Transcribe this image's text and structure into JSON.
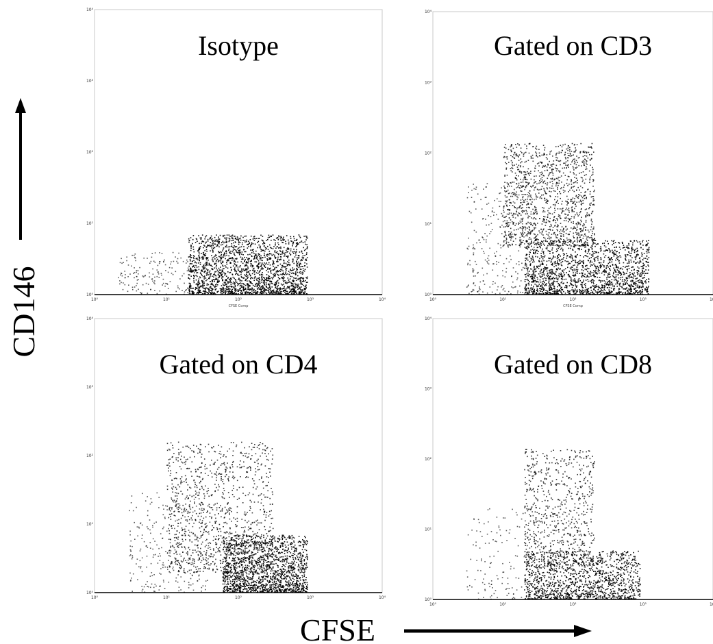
{
  "figure": {
    "y_axis_label": "CD146",
    "x_axis_label": "CFSE"
  },
  "chart_data": [
    {
      "type": "scatter",
      "title": "Isotype",
      "xlabel": "CFSE Comp",
      "scale": "log",
      "xlim": [
        1,
        10000
      ],
      "ylim": [
        1,
        10000
      ],
      "x_ticks": [
        "10⁰",
        "10¹",
        "10²",
        "10³",
        "10⁴"
      ],
      "y_ticks": [
        "10⁰",
        "10¹",
        "10²",
        "10³",
        "10⁴"
      ],
      "clusters": [
        {
          "x_range": [
            20,
            900
          ],
          "y_range": [
            1,
            7
          ],
          "density": "high",
          "points": 2200
        },
        {
          "x_range": [
            2,
            20
          ],
          "y_range": [
            1,
            4
          ],
          "density": "low",
          "points": 160
        }
      ]
    },
    {
      "type": "scatter",
      "title": "Gated on CD3",
      "xlabel": "CFSE Comp",
      "scale": "log",
      "xlim": [
        1,
        10000
      ],
      "ylim": [
        1,
        10000
      ],
      "x_ticks": [
        "10⁰",
        "10¹",
        "10²",
        "10³",
        "10⁴"
      ],
      "y_ticks": [
        "10⁰",
        "10¹",
        "10²",
        "10³",
        "10⁴"
      ],
      "clusters": [
        {
          "x_range": [
            20,
            1200
          ],
          "y_range": [
            1,
            6
          ],
          "density": "high",
          "points": 1800
        },
        {
          "x_range": [
            10,
            200
          ],
          "y_range": [
            5,
            140
          ],
          "density": "medium",
          "points": 1300
        },
        {
          "x_range": [
            3,
            30
          ],
          "y_range": [
            1,
            40
          ],
          "density": "low",
          "points": 320
        }
      ]
    },
    {
      "type": "scatter",
      "title": "Gated on CD4",
      "xlabel": "",
      "scale": "log",
      "xlim": [
        1,
        10000
      ],
      "ylim": [
        1,
        10000
      ],
      "x_ticks": [
        "10⁰",
        "10¹",
        "10²",
        "10³",
        "10⁴"
      ],
      "y_ticks": [
        "10⁰",
        "10¹",
        "10²",
        "10³",
        "10⁴"
      ],
      "clusters": [
        {
          "x_range": [
            60,
            900
          ],
          "y_range": [
            1,
            7
          ],
          "density": "high",
          "points": 1700
        },
        {
          "x_range": [
            10,
            300
          ],
          "y_range": [
            2,
            160
          ],
          "density": "medium",
          "points": 1100
        },
        {
          "x_range": [
            3,
            40
          ],
          "y_range": [
            1,
            30
          ],
          "density": "low",
          "points": 300
        }
      ]
    },
    {
      "type": "scatter",
      "title": "Gated on CD8",
      "xlabel": "",
      "scale": "log",
      "xlim": [
        1,
        10000
      ],
      "ylim": [
        1,
        10000
      ],
      "x_ticks": [
        "10⁰",
        "10¹",
        "10²",
        "10³",
        "10⁴"
      ],
      "y_ticks": [
        "10⁰",
        "10¹",
        "10²",
        "10³",
        "10⁴"
      ],
      "clusters": [
        {
          "x_range": [
            20,
            900
          ],
          "y_range": [
            1,
            5
          ],
          "density": "high",
          "points": 1300
        },
        {
          "x_range": [
            20,
            200
          ],
          "y_range": [
            3,
            140
          ],
          "density": "medium",
          "points": 700
        },
        {
          "x_range": [
            3,
            30
          ],
          "y_range": [
            1,
            20
          ],
          "density": "low",
          "points": 150
        }
      ]
    }
  ]
}
